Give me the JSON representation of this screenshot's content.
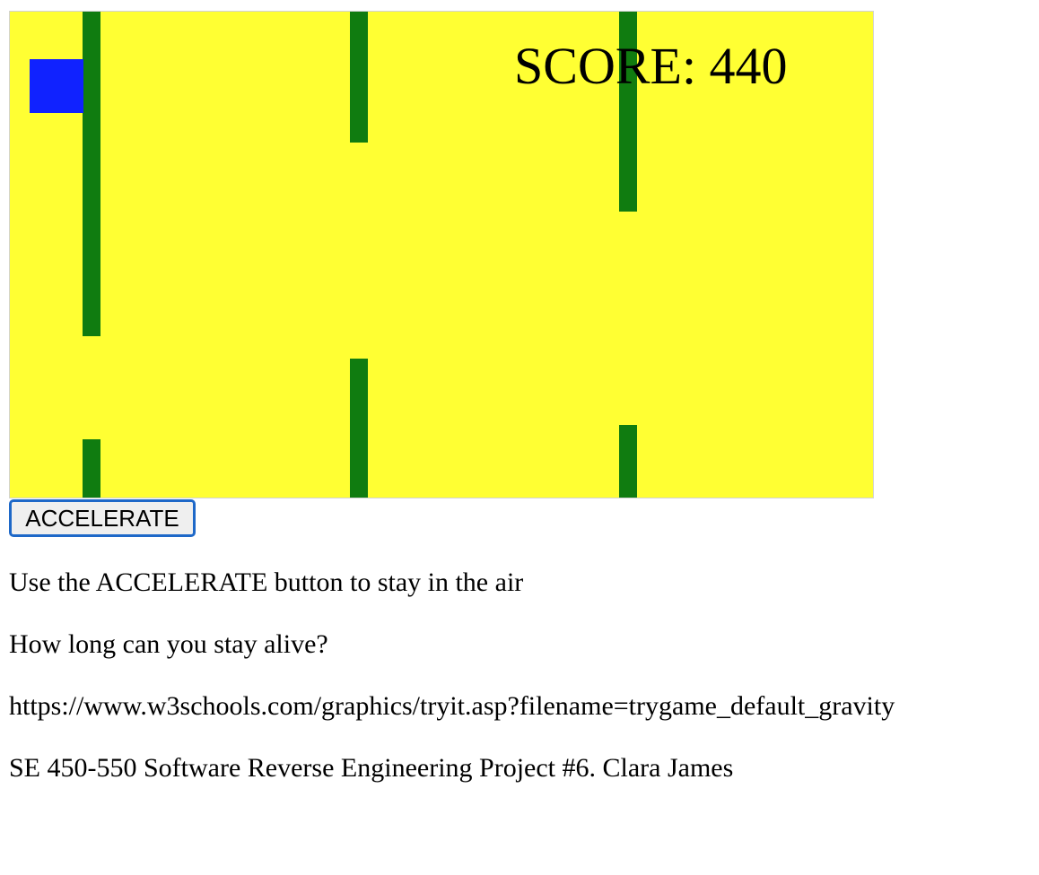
{
  "game": {
    "score_text": "SCORE: 440",
    "colors": {
      "background": "#ffff33",
      "obstacle": "#107c10",
      "player": "#1022ff"
    }
  },
  "controls": {
    "accelerate_label": "ACCELERATE"
  },
  "text": {
    "instruction": "Use the ACCELERATE button to stay in the air",
    "question": "How long can you stay alive?",
    "source_url": "https://www.w3schools.com/graphics/tryit.asp?filename=trygame_default_gravity",
    "credit": "SE 450-550 Software Reverse Engineering Project #6. Clara James"
  }
}
